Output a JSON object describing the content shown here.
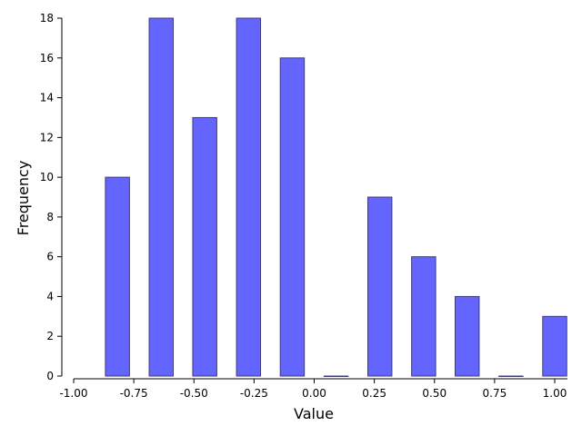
{
  "chart_data": {
    "type": "bar",
    "xlabel": "Value",
    "ylabel": "Frequency",
    "xlim": [
      -1.0,
      1.05
    ],
    "ylim": [
      0,
      18
    ],
    "grid": false,
    "bar_color": "#6464ff",
    "edge_color": "#3c3c78",
    "bins": [
      {
        "center": -0.818,
        "value": 10
      },
      {
        "center": -0.636,
        "value": 18
      },
      {
        "center": -0.455,
        "value": 13
      },
      {
        "center": -0.273,
        "value": 18
      },
      {
        "center": -0.091,
        "value": 16
      },
      {
        "center": 0.091,
        "value": 0
      },
      {
        "center": 0.273,
        "value": 9
      },
      {
        "center": 0.455,
        "value": 6
      },
      {
        "center": 0.636,
        "value": 4
      },
      {
        "center": 0.818,
        "value": 0
      },
      {
        "center": 1.0,
        "value": 3
      }
    ],
    "bar_width": 0.1,
    "x_ticks": [
      "-1.00",
      "-0.75",
      "-0.50",
      "-0.25",
      "0.00",
      "0.25",
      "0.50",
      "0.75",
      "1.00"
    ],
    "x_tick_values": [
      -1.0,
      -0.75,
      -0.5,
      -0.25,
      0.0,
      0.25,
      0.5,
      0.75,
      1.0
    ],
    "y_ticks": [
      "0",
      "2",
      "4",
      "6",
      "8",
      "10",
      "12",
      "14",
      "16",
      "18"
    ],
    "y_tick_values": [
      0,
      2,
      4,
      6,
      8,
      10,
      12,
      14,
      16,
      18
    ]
  }
}
